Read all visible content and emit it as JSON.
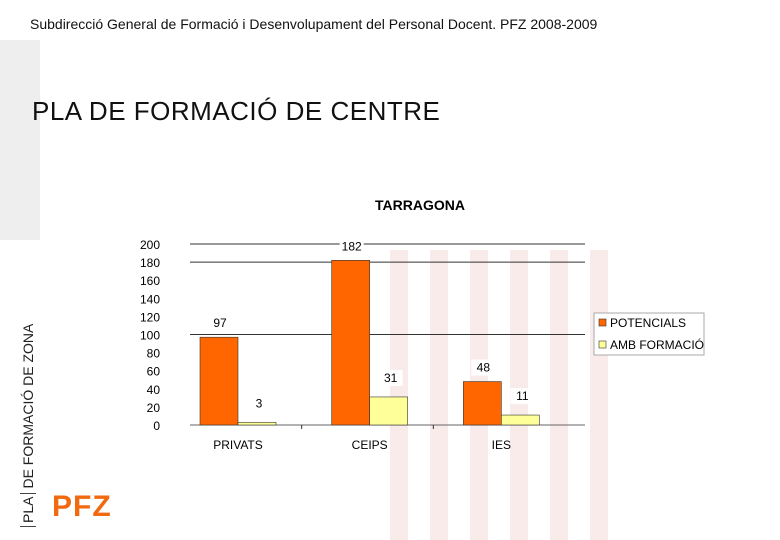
{
  "header": {
    "subtitle": "Subdirecció General de Formació i Desenvolupament del Personal Docent. PFZ 2008-2009",
    "title": "PLA DE FORMACIÓ DE CENTRE",
    "side_label_pla": "PLA",
    "side_label_rest": "DE FORMACIÓ DE ZONA",
    "logo_text": "PFZ"
  },
  "colors": {
    "potencials": "#ff6600",
    "amb_formacio": "#ffff99",
    "logo": "#f26a10"
  },
  "chart_data": {
    "type": "bar",
    "title": "TARRAGONA",
    "categories": [
      "PRIVATS",
      "CEIPS",
      "IES"
    ],
    "series": [
      {
        "name": "POTENCIALS",
        "values": [
          97,
          182,
          48
        ]
      },
      {
        "name": "AMB FORMACIÓ",
        "values": [
          3,
          31,
          11
        ]
      }
    ],
    "ylim": [
      0,
      200
    ],
    "yticks": [
      0,
      20,
      40,
      60,
      80,
      100,
      120,
      140,
      160,
      180,
      200
    ],
    "grid": true,
    "legend": "right"
  }
}
